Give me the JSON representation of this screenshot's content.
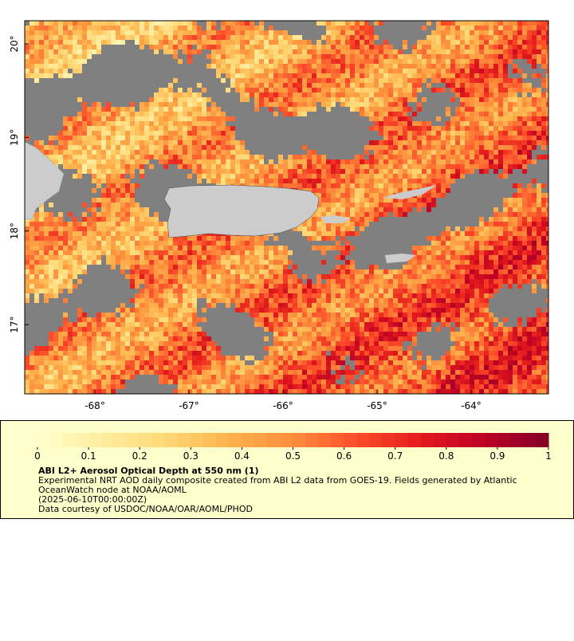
{
  "chart_data": {
    "type": "map",
    "xlim": [
      -68.746,
      -63.178
    ],
    "ylim": [
      16.26,
      20.247
    ],
    "xticks": [
      {
        "value": -68,
        "label": "-68°"
      },
      {
        "value": -67,
        "label": "-67°"
      },
      {
        "value": -66,
        "label": "-66°"
      },
      {
        "value": -65,
        "label": "-65°"
      },
      {
        "value": -64,
        "label": "-64°"
      }
    ],
    "yticks": [
      {
        "value": 17,
        "label": "17°"
      },
      {
        "value": 18,
        "label": "18°"
      },
      {
        "value": 19,
        "label": "19°"
      },
      {
        "value": 20,
        "label": "20°"
      }
    ],
    "colorbar": {
      "lim": [
        0,
        1
      ],
      "ticks": [
        0,
        0.1,
        0.2,
        0.3,
        0.4,
        0.5,
        0.6,
        0.7,
        0.8,
        0.9,
        1
      ],
      "colors": [
        "#ffffcc",
        "#ffeda0",
        "#fed976",
        "#feb24c",
        "#fd8d3c",
        "#fc4e2a",
        "#e31a1c",
        "#bd0026",
        "#800026"
      ]
    },
    "title": "ABI L2+ Aerosol Optical Depth at 550 nm (1)",
    "description": [
      "Experimental NRT AOD daily composite created from ABI L2 data from GOES-19. Fields generated by Atlantic",
      "OceanWatch node at NOAA/AOML",
      "(2025-06-10T00:00:00Z)",
      "Data courtesy of USDOC/NOAA/OAR/AOML/PHOD"
    ]
  }
}
